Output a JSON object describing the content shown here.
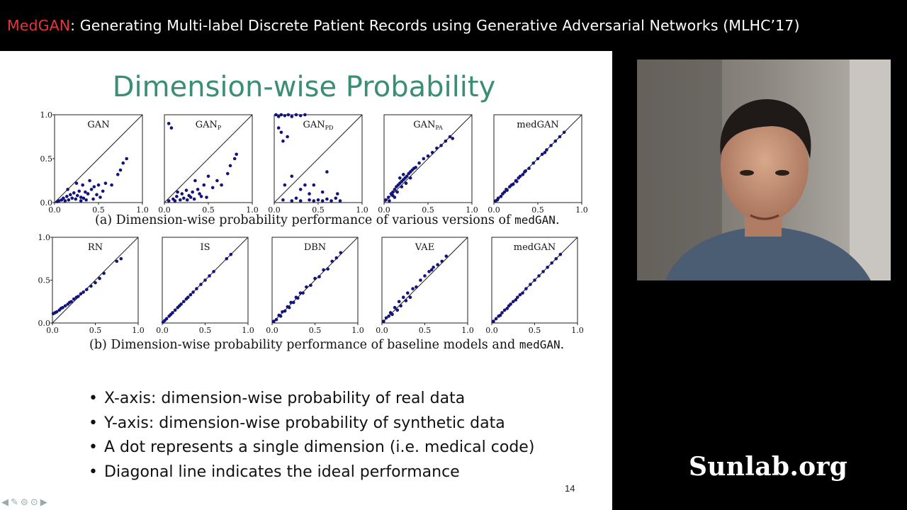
{
  "banner": {
    "brand": "MedGAN",
    "rest": ": Generating Multi-label Discrete Patient Records using Generative Adversarial Networks (MLHC’17)"
  },
  "slide": {
    "title": "Dimension-wise Probability",
    "caption_a": {
      "text": "(a) Dimension-wise probability performance of various versions of ",
      "code": "medGAN",
      "end": "."
    },
    "caption_b": {
      "text": "(b) Dimension-wise probability performance of baseline models and ",
      "code": "medGAN",
      "end": "."
    },
    "bullets": [
      "X-axis: dimension-wise probability of real data",
      "Y-axis: dimension-wise probability of synthetic data",
      "A dot represents a single dimension (i.e. medical code)",
      "Diagonal line indicates the ideal performance"
    ],
    "page_number": "14"
  },
  "watermark": "Sunlab.org",
  "nav_icons": [
    "arrow-left-icon",
    "pencil-icon",
    "menu-circle-icon",
    "more-circle-icon",
    "arrow-right-icon"
  ],
  "colors": {
    "brand": "#e8343a",
    "title": "#3a8f72",
    "points": "#13137a"
  },
  "chart_data": [
    {
      "type": "scatter",
      "title": "GAN",
      "xlim": [
        0,
        1
      ],
      "ylim": [
        0,
        1
      ],
      "xticks": [
        "0.0",
        "0.5",
        "1.0"
      ],
      "yticks": [
        "0.0",
        "0.5",
        "1.0"
      ],
      "points": [
        [
          0.03,
          0.01
        ],
        [
          0.05,
          0.02
        ],
        [
          0.08,
          0.03
        ],
        [
          0.1,
          0.05
        ],
        [
          0.12,
          0.02
        ],
        [
          0.14,
          0.07
        ],
        [
          0.16,
          0.03
        ],
        [
          0.18,
          0.09
        ],
        [
          0.2,
          0.05
        ],
        [
          0.22,
          0.11
        ],
        [
          0.24,
          0.04
        ],
        [
          0.26,
          0.08
        ],
        [
          0.28,
          0.13
        ],
        [
          0.3,
          0.06
        ],
        [
          0.32,
          0.2
        ],
        [
          0.35,
          0.12
        ],
        [
          0.38,
          0.1
        ],
        [
          0.4,
          0.25
        ],
        [
          0.42,
          0.15
        ],
        [
          0.45,
          0.18
        ],
        [
          0.5,
          0.2
        ],
        [
          0.55,
          0.13
        ],
        [
          0.58,
          0.22
        ],
        [
          0.65,
          0.2
        ],
        [
          0.72,
          0.32
        ],
        [
          0.75,
          0.37
        ],
        [
          0.78,
          0.45
        ],
        [
          0.82,
          0.5
        ],
        [
          0.15,
          0.15
        ],
        [
          0.25,
          0.22
        ],
        [
          0.3,
          0.02
        ],
        [
          0.33,
          0.05
        ],
        [
          0.36,
          0.03
        ],
        [
          0.44,
          0.04
        ],
        [
          0.48,
          0.09
        ],
        [
          0.52,
          0.06
        ]
      ]
    },
    {
      "type": "scatter",
      "title": "GAN_P",
      "xlim": [
        0,
        1
      ],
      "ylim": [
        0,
        1
      ],
      "xticks": [
        "0.0",
        "0.5",
        "1.0"
      ],
      "yticks": [],
      "points": [
        [
          0.05,
          0.9
        ],
        [
          0.08,
          0.85
        ],
        [
          0.05,
          0.02
        ],
        [
          0.1,
          0.04
        ],
        [
          0.14,
          0.07
        ],
        [
          0.18,
          0.03
        ],
        [
          0.2,
          0.1
        ],
        [
          0.22,
          0.05
        ],
        [
          0.25,
          0.14
        ],
        [
          0.28,
          0.08
        ],
        [
          0.3,
          0.06
        ],
        [
          0.32,
          0.12
        ],
        [
          0.35,
          0.25
        ],
        [
          0.38,
          0.15
        ],
        [
          0.4,
          0.1
        ],
        [
          0.45,
          0.2
        ],
        [
          0.5,
          0.3
        ],
        [
          0.55,
          0.17
        ],
        [
          0.6,
          0.25
        ],
        [
          0.65,
          0.2
        ],
        [
          0.72,
          0.33
        ],
        [
          0.75,
          0.42
        ],
        [
          0.8,
          0.5
        ],
        [
          0.82,
          0.55
        ],
        [
          0.15,
          0.12
        ],
        [
          0.26,
          0.03
        ],
        [
          0.34,
          0.04
        ],
        [
          0.42,
          0.07
        ],
        [
          0.12,
          0.02
        ],
        [
          0.48,
          0.06
        ]
      ]
    },
    {
      "type": "scatter",
      "title": "GAN_PD",
      "xlim": [
        0,
        1
      ],
      "ylim": [
        0,
        1
      ],
      "xticks": [
        "0.0",
        "0.5",
        "1.0"
      ],
      "yticks": [],
      "points": [
        [
          0.02,
          1.0
        ],
        [
          0.05,
          0.98
        ],
        [
          0.08,
          1.0
        ],
        [
          0.12,
          0.99
        ],
        [
          0.16,
          1.0
        ],
        [
          0.2,
          0.98
        ],
        [
          0.25,
          1.0
        ],
        [
          0.3,
          0.99
        ],
        [
          0.35,
          1.0
        ],
        [
          0.05,
          0.85
        ],
        [
          0.08,
          0.8
        ],
        [
          0.1,
          0.7
        ],
        [
          0.15,
          0.75
        ],
        [
          0.2,
          0.3
        ],
        [
          0.12,
          0.2
        ],
        [
          0.3,
          0.15
        ],
        [
          0.35,
          0.2
        ],
        [
          0.4,
          0.1
        ],
        [
          0.45,
          0.2
        ],
        [
          0.55,
          0.12
        ],
        [
          0.6,
          0.35
        ],
        [
          0.55,
          0.02
        ],
        [
          0.6,
          0.04
        ],
        [
          0.65,
          0.02
        ],
        [
          0.7,
          0.05
        ],
        [
          0.4,
          0.03
        ],
        [
          0.3,
          0.02
        ],
        [
          0.2,
          0.02
        ],
        [
          0.1,
          0.03
        ],
        [
          0.72,
          0.1
        ],
        [
          0.75,
          0.02
        ],
        [
          0.5,
          0.03
        ],
        [
          0.25,
          0.05
        ],
        [
          0.45,
          0.02
        ]
      ]
    },
    {
      "type": "scatter",
      "title": "GAN_PA",
      "xlim": [
        0,
        1
      ],
      "ylim": [
        0,
        1
      ],
      "xticks": [
        "0.0",
        "0.5",
        "1.0"
      ],
      "yticks": [],
      "points": [
        [
          0.02,
          0.03
        ],
        [
          0.05,
          0.06
        ],
        [
          0.08,
          0.1
        ],
        [
          0.1,
          0.12
        ],
        [
          0.12,
          0.15
        ],
        [
          0.14,
          0.18
        ],
        [
          0.16,
          0.2
        ],
        [
          0.18,
          0.22
        ],
        [
          0.2,
          0.24
        ],
        [
          0.22,
          0.26
        ],
        [
          0.24,
          0.28
        ],
        [
          0.26,
          0.3
        ],
        [
          0.28,
          0.33
        ],
        [
          0.3,
          0.35
        ],
        [
          0.32,
          0.37
        ],
        [
          0.34,
          0.39
        ],
        [
          0.36,
          0.4
        ],
        [
          0.4,
          0.45
        ],
        [
          0.45,
          0.5
        ],
        [
          0.5,
          0.53
        ],
        [
          0.55,
          0.57
        ],
        [
          0.6,
          0.62
        ],
        [
          0.65,
          0.65
        ],
        [
          0.7,
          0.7
        ],
        [
          0.75,
          0.75
        ],
        [
          0.78,
          0.73
        ],
        [
          0.1,
          0.08
        ],
        [
          0.15,
          0.12
        ],
        [
          0.2,
          0.18
        ],
        [
          0.25,
          0.22
        ],
        [
          0.3,
          0.28
        ],
        [
          0.18,
          0.28
        ],
        [
          0.22,
          0.32
        ],
        [
          0.06,
          0.02
        ],
        [
          0.12,
          0.06
        ]
      ]
    },
    {
      "type": "scatter",
      "title": "medGAN",
      "xlim": [
        0,
        1
      ],
      "ylim": [
        0,
        1
      ],
      "xticks": [
        "0.0",
        "0.5",
        "1.0"
      ],
      "yticks": [],
      "points": [
        [
          0.02,
          0.02
        ],
        [
          0.05,
          0.05
        ],
        [
          0.08,
          0.07
        ],
        [
          0.1,
          0.1
        ],
        [
          0.12,
          0.12
        ],
        [
          0.15,
          0.14
        ],
        [
          0.18,
          0.18
        ],
        [
          0.2,
          0.2
        ],
        [
          0.22,
          0.21
        ],
        [
          0.25,
          0.25
        ],
        [
          0.28,
          0.28
        ],
        [
          0.3,
          0.3
        ],
        [
          0.33,
          0.32
        ],
        [
          0.36,
          0.36
        ],
        [
          0.4,
          0.39
        ],
        [
          0.45,
          0.45
        ],
        [
          0.5,
          0.5
        ],
        [
          0.55,
          0.55
        ],
        [
          0.58,
          0.57
        ],
        [
          0.6,
          0.6
        ],
        [
          0.65,
          0.65
        ],
        [
          0.7,
          0.7
        ],
        [
          0.75,
          0.75
        ],
        [
          0.8,
          0.8
        ],
        [
          0.04,
          0.03
        ],
        [
          0.14,
          0.15
        ],
        [
          0.26,
          0.24
        ],
        [
          0.35,
          0.35
        ]
      ]
    },
    {
      "type": "scatter",
      "title": "RN",
      "xlim": [
        0,
        1
      ],
      "ylim": [
        0,
        1
      ],
      "xticks": [
        "0.0",
        "0.5",
        "1.0"
      ],
      "yticks": [
        "0.0",
        "0.5",
        "1.0"
      ],
      "points": [
        [
          0.01,
          0.11
        ],
        [
          0.03,
          0.12
        ],
        [
          0.05,
          0.13
        ],
        [
          0.08,
          0.15
        ],
        [
          0.1,
          0.17
        ],
        [
          0.12,
          0.18
        ],
        [
          0.15,
          0.2
        ],
        [
          0.18,
          0.22
        ],
        [
          0.2,
          0.24
        ],
        [
          0.22,
          0.25
        ],
        [
          0.25,
          0.28
        ],
        [
          0.28,
          0.3
        ],
        [
          0.3,
          0.31
        ],
        [
          0.33,
          0.34
        ],
        [
          0.36,
          0.36
        ],
        [
          0.4,
          0.39
        ],
        [
          0.45,
          0.43
        ],
        [
          0.5,
          0.47
        ],
        [
          0.55,
          0.52
        ],
        [
          0.6,
          0.58
        ],
        [
          0.75,
          0.72
        ],
        [
          0.8,
          0.75
        ]
      ]
    },
    {
      "type": "scatter",
      "title": "IS",
      "xlim": [
        0,
        1
      ],
      "ylim": [
        0,
        1
      ],
      "xticks": [
        "0.0",
        "0.5",
        "1.0"
      ],
      "yticks": [],
      "points": [
        [
          0.01,
          0.01
        ],
        [
          0.03,
          0.03
        ],
        [
          0.05,
          0.05
        ],
        [
          0.08,
          0.08
        ],
        [
          0.1,
          0.1
        ],
        [
          0.12,
          0.12
        ],
        [
          0.15,
          0.15
        ],
        [
          0.18,
          0.18
        ],
        [
          0.2,
          0.2
        ],
        [
          0.22,
          0.22
        ],
        [
          0.25,
          0.25
        ],
        [
          0.28,
          0.28
        ],
        [
          0.3,
          0.3
        ],
        [
          0.33,
          0.33
        ],
        [
          0.36,
          0.36
        ],
        [
          0.4,
          0.4
        ],
        [
          0.45,
          0.45
        ],
        [
          0.5,
          0.5
        ],
        [
          0.55,
          0.55
        ],
        [
          0.6,
          0.6
        ],
        [
          0.75,
          0.75
        ],
        [
          0.8,
          0.8
        ]
      ]
    },
    {
      "type": "scatter",
      "title": "DBN",
      "xlim": [
        0,
        1
      ],
      "ylim": [
        0,
        1
      ],
      "xticks": [
        "0.0",
        "0.5",
        "1.0"
      ],
      "yticks": [],
      "points": [
        [
          0.02,
          0.02
        ],
        [
          0.05,
          0.04
        ],
        [
          0.08,
          0.09
        ],
        [
          0.1,
          0.08
        ],
        [
          0.12,
          0.13
        ],
        [
          0.15,
          0.14
        ],
        [
          0.18,
          0.19
        ],
        [
          0.2,
          0.18
        ],
        [
          0.22,
          0.24
        ],
        [
          0.25,
          0.24
        ],
        [
          0.28,
          0.3
        ],
        [
          0.3,
          0.29
        ],
        [
          0.33,
          0.35
        ],
        [
          0.36,
          0.35
        ],
        [
          0.4,
          0.42
        ],
        [
          0.45,
          0.44
        ],
        [
          0.5,
          0.52
        ],
        [
          0.55,
          0.54
        ],
        [
          0.6,
          0.62
        ],
        [
          0.65,
          0.63
        ],
        [
          0.7,
          0.72
        ],
        [
          0.75,
          0.76
        ],
        [
          0.8,
          0.82
        ]
      ]
    },
    {
      "type": "scatter",
      "title": "VAE",
      "xlim": [
        0,
        1
      ],
      "ylim": [
        0,
        1
      ],
      "xticks": [
        "0.0",
        "0.5",
        "1.0"
      ],
      "yticks": [],
      "points": [
        [
          0.02,
          0.02
        ],
        [
          0.05,
          0.06
        ],
        [
          0.08,
          0.08
        ],
        [
          0.1,
          0.12
        ],
        [
          0.12,
          0.1
        ],
        [
          0.15,
          0.18
        ],
        [
          0.18,
          0.15
        ],
        [
          0.2,
          0.25
        ],
        [
          0.22,
          0.2
        ],
        [
          0.25,
          0.3
        ],
        [
          0.28,
          0.26
        ],
        [
          0.3,
          0.35
        ],
        [
          0.33,
          0.3
        ],
        [
          0.36,
          0.4
        ],
        [
          0.4,
          0.42
        ],
        [
          0.45,
          0.5
        ],
        [
          0.5,
          0.55
        ],
        [
          0.55,
          0.6
        ],
        [
          0.58,
          0.62
        ],
        [
          0.6,
          0.65
        ],
        [
          0.65,
          0.68
        ],
        [
          0.7,
          0.72
        ],
        [
          0.75,
          0.78
        ]
      ]
    },
    {
      "type": "scatter",
      "title": "medGAN",
      "xlim": [
        0,
        1
      ],
      "ylim": [
        0,
        1
      ],
      "xticks": [
        "0.0",
        "0.5",
        "1.0"
      ],
      "yticks": [],
      "points": [
        [
          0.02,
          0.02
        ],
        [
          0.05,
          0.05
        ],
        [
          0.08,
          0.08
        ],
        [
          0.1,
          0.09
        ],
        [
          0.12,
          0.12
        ],
        [
          0.15,
          0.15
        ],
        [
          0.18,
          0.17
        ],
        [
          0.2,
          0.2
        ],
        [
          0.22,
          0.22
        ],
        [
          0.25,
          0.25
        ],
        [
          0.28,
          0.27
        ],
        [
          0.3,
          0.3
        ],
        [
          0.33,
          0.33
        ],
        [
          0.36,
          0.35
        ],
        [
          0.4,
          0.4
        ],
        [
          0.45,
          0.45
        ],
        [
          0.5,
          0.5
        ],
        [
          0.55,
          0.55
        ],
        [
          0.6,
          0.6
        ],
        [
          0.65,
          0.65
        ],
        [
          0.7,
          0.7
        ],
        [
          0.75,
          0.75
        ],
        [
          0.8,
          0.8
        ]
      ]
    }
  ]
}
